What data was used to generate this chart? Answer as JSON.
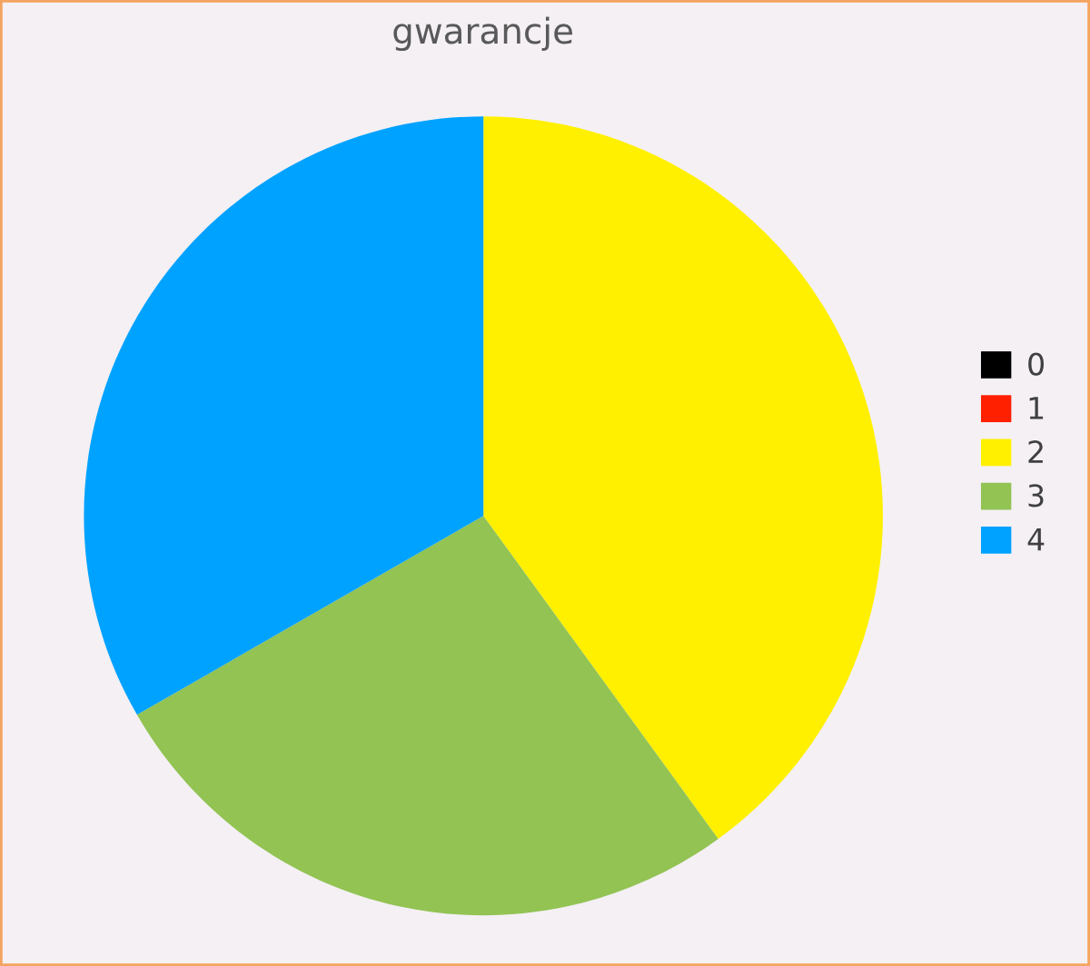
{
  "chart_data": {
    "type": "pie",
    "title": "gwarancje",
    "categories": [
      "0",
      "1",
      "2",
      "3",
      "4"
    ],
    "values": [
      0,
      0,
      40,
      26.7,
      33.3
    ],
    "colors": [
      "#000000",
      "#ff2000",
      "#fff000",
      "#92c353",
      "#00a2ff"
    ],
    "legend": "right"
  }
}
